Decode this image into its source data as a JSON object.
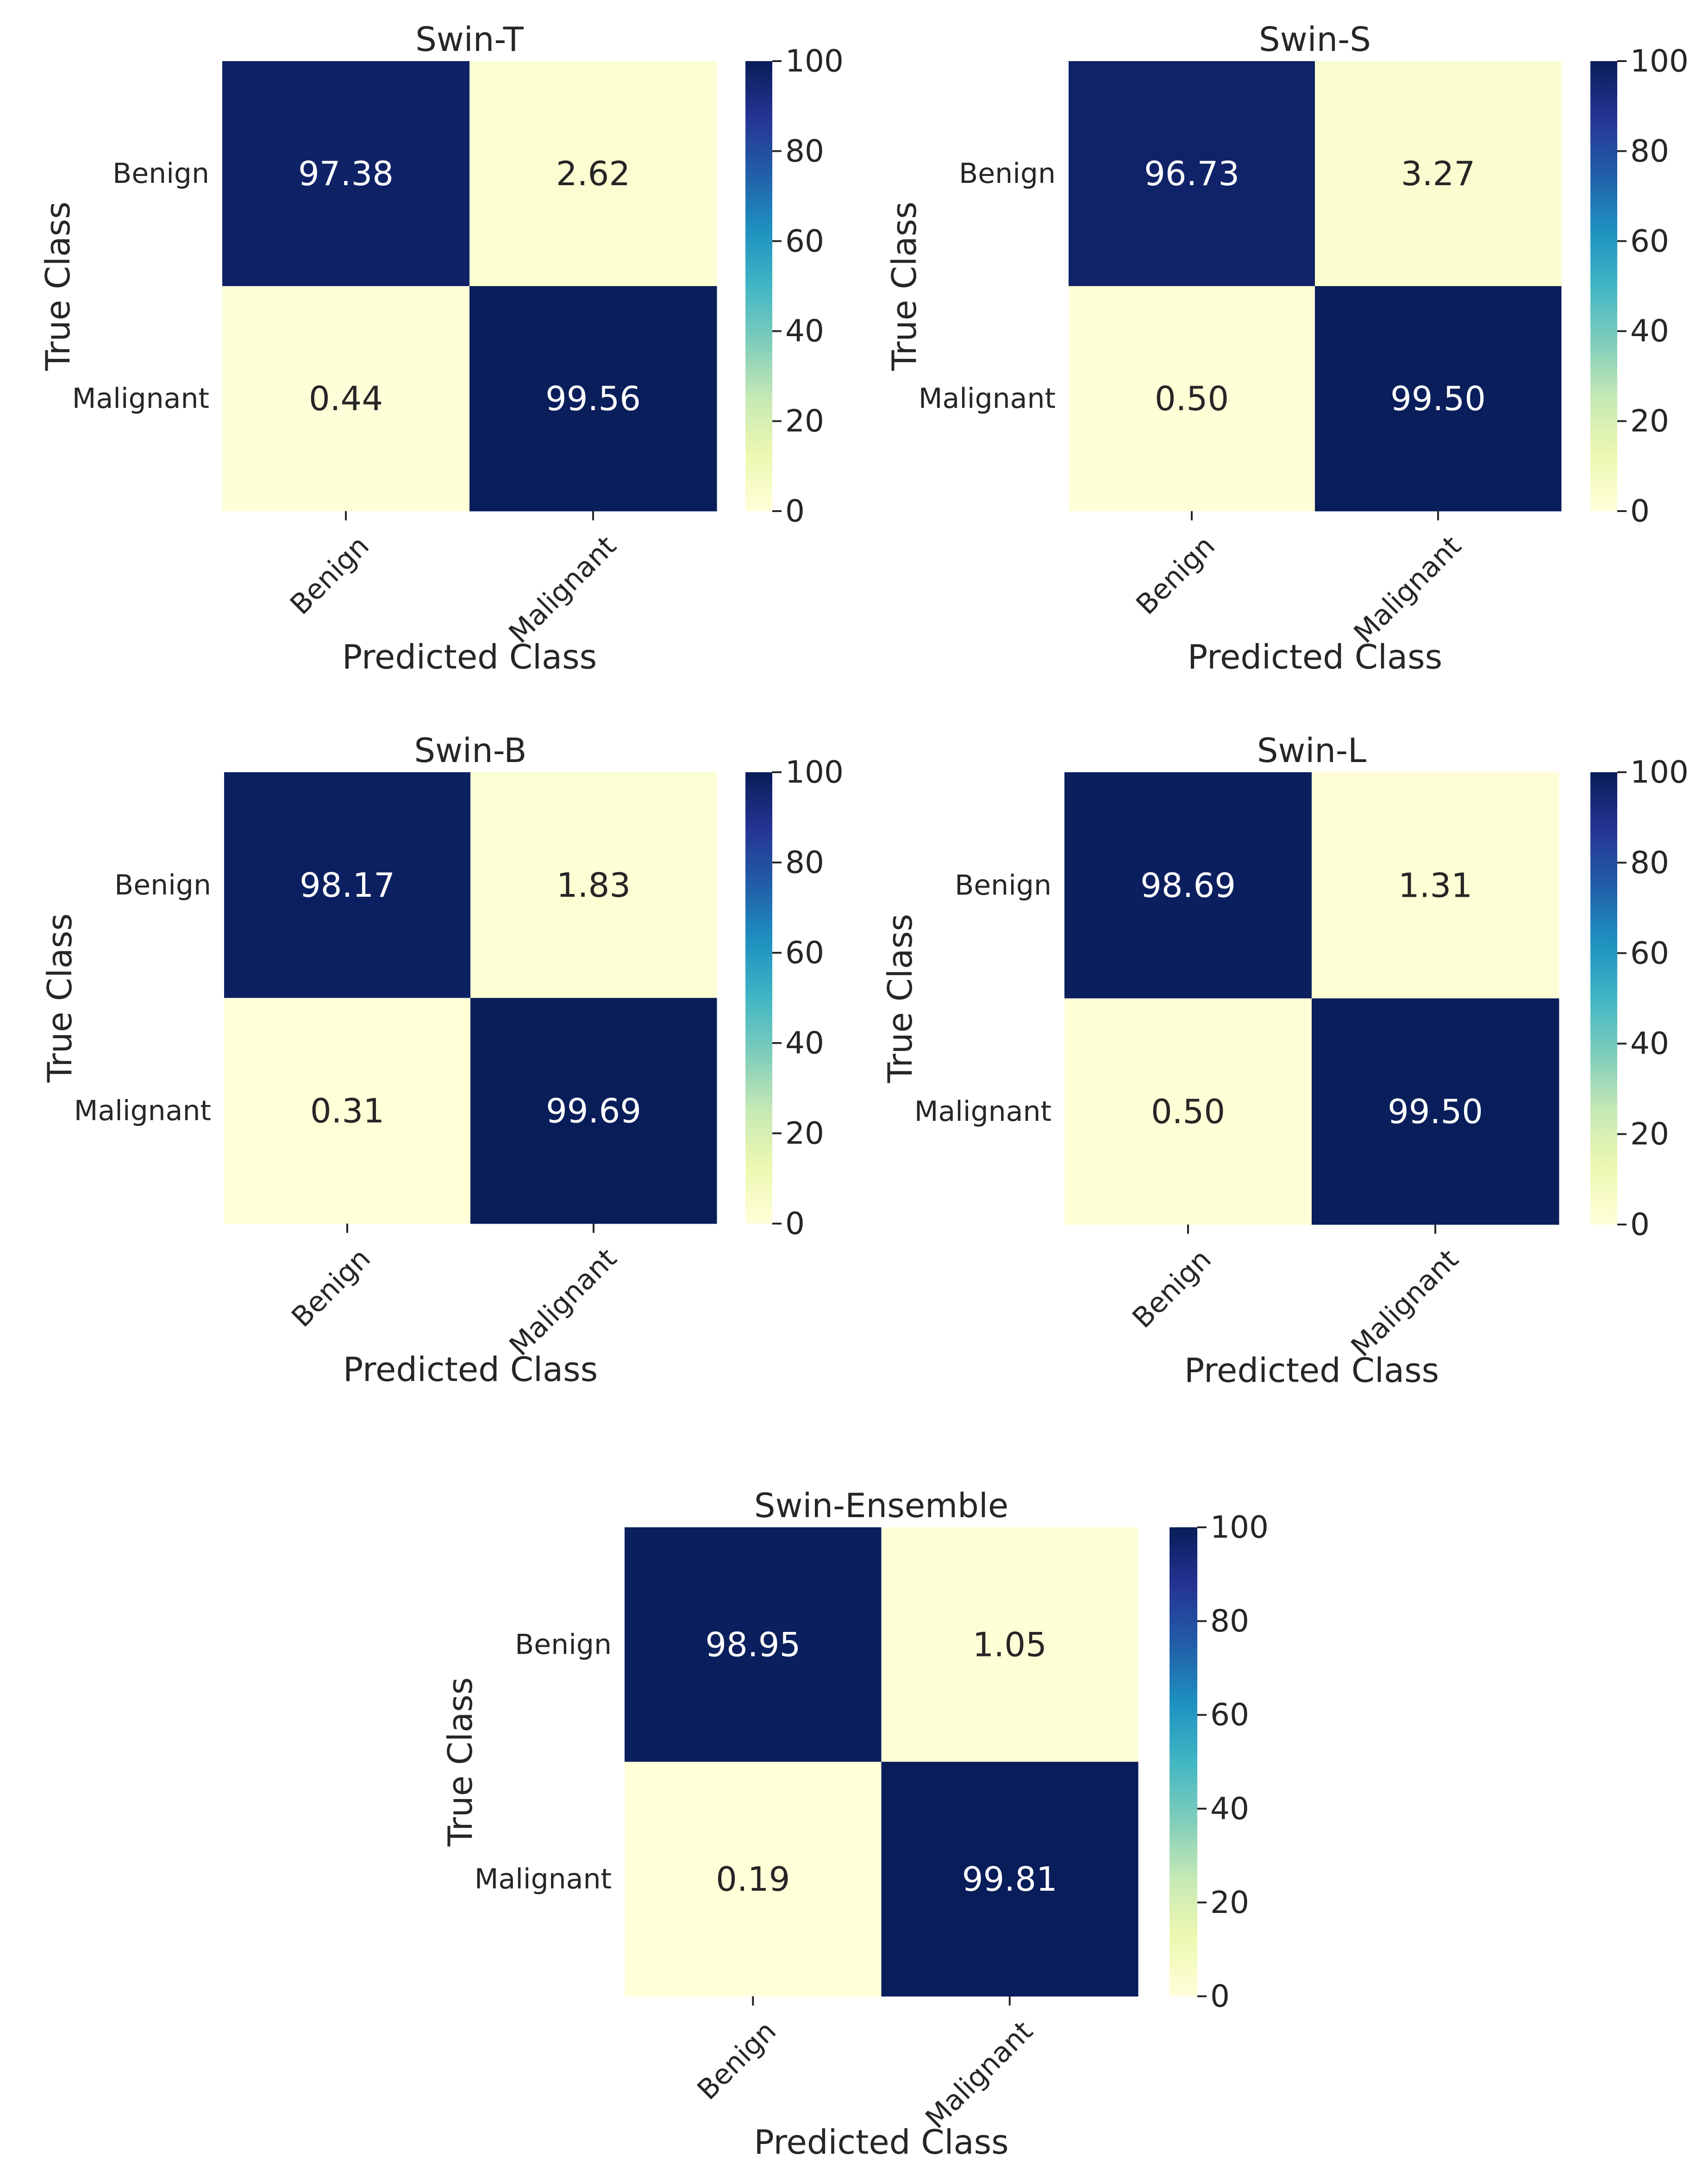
{
  "chart_data": [
    {
      "type": "heatmap",
      "title": "Swin-T",
      "xlabel": "Predicted Class",
      "ylabel": "True Class",
      "row_labels": [
        "Benign",
        "Malignant"
      ],
      "col_labels": [
        "Benign",
        "Malignant"
      ],
      "values": [
        [
          97.38,
          2.62
        ],
        [
          0.44,
          99.56
        ]
      ],
      "value_labels": [
        [
          "97.38",
          "2.62"
        ],
        [
          "0.44",
          "99.56"
        ]
      ],
      "colorbar": {
        "range": [
          0,
          100
        ],
        "ticks": [
          0,
          20,
          40,
          60,
          80,
          100
        ],
        "colormap": "YlGnBu"
      }
    },
    {
      "type": "heatmap",
      "title": "Swin-S",
      "xlabel": "Predicted Class",
      "ylabel": "True Class",
      "row_labels": [
        "Benign",
        "Malignant"
      ],
      "col_labels": [
        "Benign",
        "Malignant"
      ],
      "values": [
        [
          96.73,
          3.27
        ],
        [
          0.5,
          99.5
        ]
      ],
      "value_labels": [
        [
          "96.73",
          "3.27"
        ],
        [
          "0.50",
          "99.50"
        ]
      ],
      "colorbar": {
        "range": [
          0,
          100
        ],
        "ticks": [
          0,
          20,
          40,
          60,
          80,
          100
        ],
        "colormap": "YlGnBu"
      }
    },
    {
      "type": "heatmap",
      "title": "Swin-B",
      "xlabel": "Predicted Class",
      "ylabel": "True Class",
      "row_labels": [
        "Benign",
        "Malignant"
      ],
      "col_labels": [
        "Benign",
        "Malignant"
      ],
      "values": [
        [
          98.17,
          1.83
        ],
        [
          0.31,
          99.69
        ]
      ],
      "value_labels": [
        [
          "98.17",
          "1.83"
        ],
        [
          "0.31",
          "99.69"
        ]
      ],
      "colorbar": {
        "range": [
          0,
          100
        ],
        "ticks": [
          0,
          20,
          40,
          60,
          80,
          100
        ],
        "colormap": "YlGnBu"
      }
    },
    {
      "type": "heatmap",
      "title": "Swin-L",
      "xlabel": "Predicted Class",
      "ylabel": "True Class",
      "row_labels": [
        "Benign",
        "Malignant"
      ],
      "col_labels": [
        "Benign",
        "Malignant"
      ],
      "values": [
        [
          98.69,
          1.31
        ],
        [
          0.5,
          99.5
        ]
      ],
      "value_labels": [
        [
          "98.69",
          "1.31"
        ],
        [
          "0.50",
          "99.50"
        ]
      ],
      "colorbar": {
        "range": [
          0,
          100
        ],
        "ticks": [
          0,
          20,
          40,
          60,
          80,
          100
        ],
        "colormap": "YlGnBu"
      }
    },
    {
      "type": "heatmap",
      "title": "Swin-Ensemble",
      "xlabel": "Predicted Class",
      "ylabel": "True Class",
      "row_labels": [
        "Benign",
        "Malignant"
      ],
      "col_labels": [
        "Benign",
        "Malignant"
      ],
      "values": [
        [
          98.95,
          1.05
        ],
        [
          0.19,
          99.81
        ]
      ],
      "value_labels": [
        [
          "98.95",
          "1.05"
        ],
        [
          "0.19",
          "99.81"
        ]
      ],
      "colorbar": {
        "range": [
          0,
          100
        ],
        "ticks": [
          0,
          20,
          40,
          60,
          80,
          100
        ],
        "colormap": "YlGnBu"
      }
    }
  ],
  "colors": {
    "low": "#ffffd9",
    "high": "#081d58",
    "text_dark": "#262626",
    "text_light": "#ffffff"
  }
}
